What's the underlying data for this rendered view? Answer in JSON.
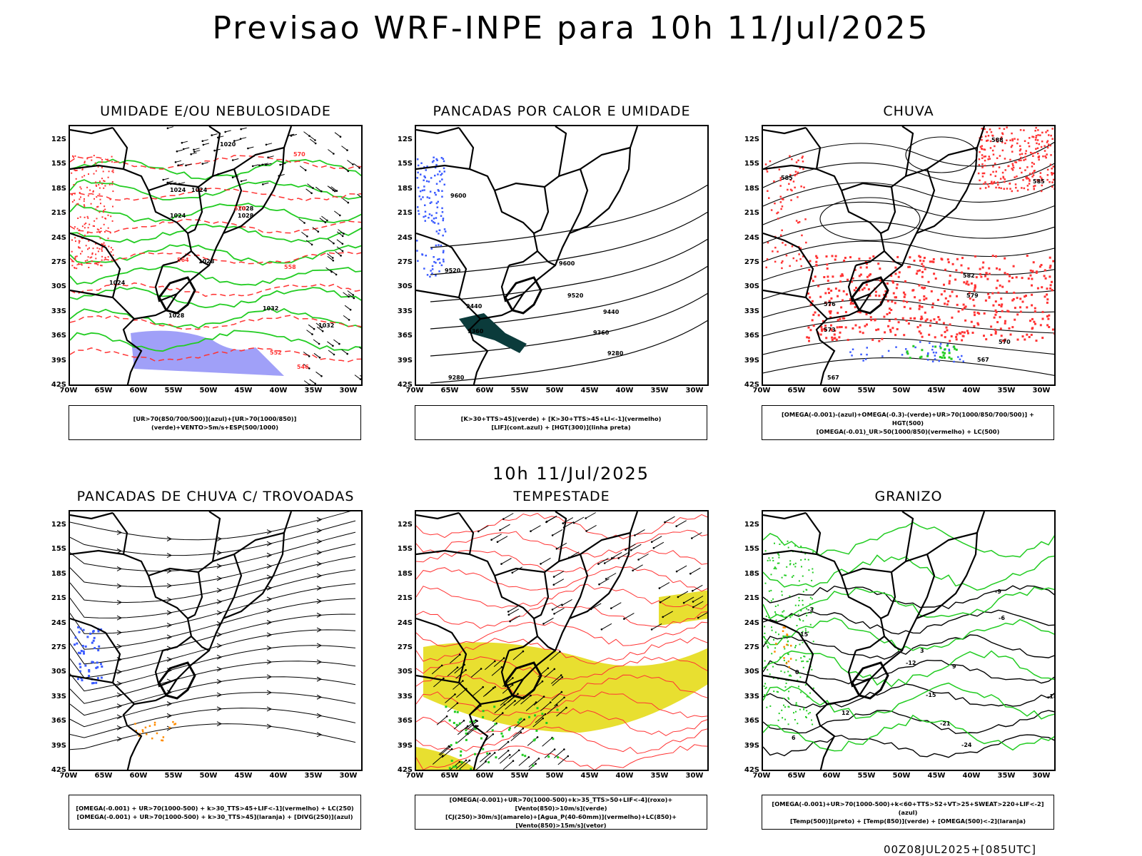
{
  "title": "Previsao WRF-INPE  para 10h 11/Jul/2025",
  "center_time": "10h 11/Jul/2025",
  "footer": "00Z08JUL2025+[085UTC]",
  "lat_ticks": [
    "12S",
    "15S",
    "18S",
    "21S",
    "24S",
    "27S",
    "30S",
    "33S",
    "36S",
    "39S",
    "42S"
  ],
  "lon_ticks": [
    "70W",
    "65W",
    "60W",
    "55W",
    "50W",
    "45W",
    "40W",
    "35W",
    "30W"
  ],
  "panels": [
    {
      "title": "UMIDADE E/OU NEBULOSIDADE",
      "legend": [
        "[UR>70(850/700/500)](azul)+[UR>70(1000/850)](verde)+VENTO>5m/s+ESP(500/1000)"
      ],
      "labels": [
        "1020",
        "1024",
        "1024",
        "1024",
        "1028",
        "1028",
        "1028",
        "1024",
        "1028",
        "1032",
        "1032",
        "570",
        "570",
        "564",
        "558",
        "552",
        "546",
        "540"
      ]
    },
    {
      "title": "PANCADAS POR CALOR E UMIDADE",
      "legend": [
        "[K>30+TTS>45](verde) + [K>30+TTS>45+LI<-1](vermelho)",
        "[LIF](cont.azul) + [HGT(300)](linha preta)"
      ],
      "labels": [
        "9600",
        "9520",
        "9440",
        "9360",
        "9280",
        "9600",
        "9520",
        "9440",
        "9360",
        "9280"
      ]
    },
    {
      "title": "CHUVA",
      "legend": [
        "[OMEGA(-0.001)-(azul)+OMEGA(-0.3)-(verde)+UR>70(1000/850/700/500)] + HGT(500)",
        "[OMEGA(-0.01)_UR>50(1000/850)(vermelho) + LC(500)"
      ],
      "labels": [
        "588",
        "585",
        "585",
        "582",
        "579",
        "576",
        "573",
        "570",
        "567",
        "567"
      ]
    },
    {
      "title": "PANCADAS DE CHUVA C/ TROVOADAS",
      "legend": [
        "[OMEGA(-0.001) + UR>70(1000-500) + k>30_TTS>45+LIF<-1](vermelho) + LC(250)",
        "[OMEGA(-0.001) + UR>70(1000-500) + k>30_TTS>45](laranja) + [DIVG(250)](azul)"
      ],
      "labels": []
    },
    {
      "title": "TEMPESTADE",
      "legend": [
        "[OMEGA(-0.001)+UR>70(1000-500)+k>35_TTS>50+LIF<-4](roxo)+[Vento(850)>10m/s](verde)",
        "[CJ(250)>30m/s](amarelo)+[Agua_P(40-60mm)](vermelho)+LC(850)+[Vento(850)>15m/s](vetor)"
      ],
      "labels": []
    },
    {
      "title": "GRANIZO",
      "legend": [
        "[OMEGA(-0.001)+UR>70(1000-500)+k<60+TTS>52+VT>25+SWEAT>220+LIF<-2](azul)",
        "[Temp(500)](preto) + [Temp(850)](verde) + [OMEGA(500)<-2](laranja)"
      ],
      "labels": [
        "-9",
        "-6",
        "-3",
        "-12",
        "0",
        "3",
        "-15",
        "-18",
        "-21",
        "-24",
        "15",
        "12",
        "9",
        "6"
      ]
    }
  ],
  "colors": {
    "blue": "#3b5bff",
    "green": "#22cc22",
    "red": "#ff3333",
    "yellow": "#e8df30",
    "black": "#000000"
  }
}
